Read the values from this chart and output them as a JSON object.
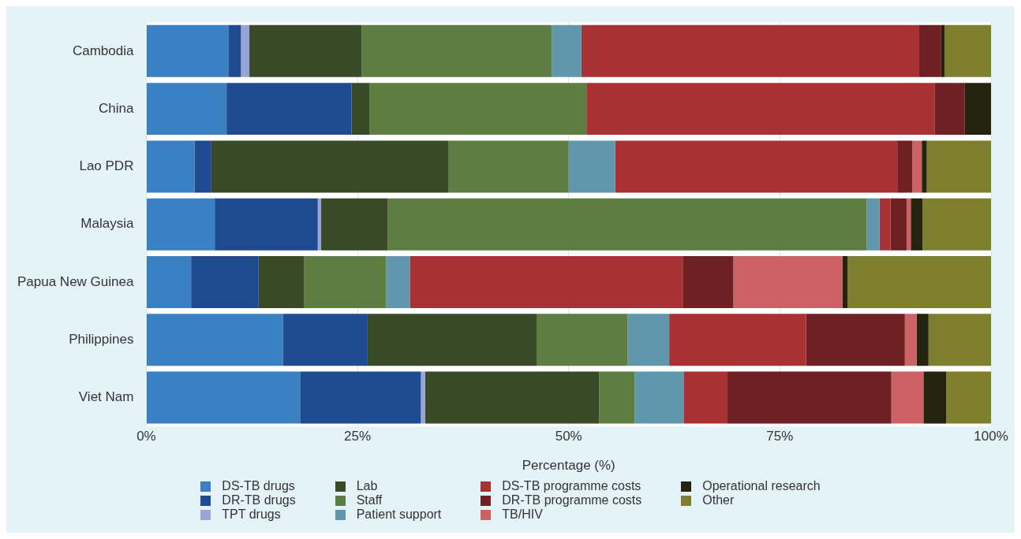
{
  "chart_data": {
    "type": "bar",
    "orientation": "horizontal",
    "stacked": true,
    "xlabel": "Percentage (%)",
    "categories": [
      "Cambodia",
      "China",
      "Lao PDR",
      "Malaysia",
      "Papua New Guinea",
      "Philippines",
      "Viet Nam"
    ],
    "xlim": [
      0,
      100
    ],
    "xticks": [
      {
        "value": 0,
        "label": "0%"
      },
      {
        "value": 25,
        "label": "25%"
      },
      {
        "value": 50,
        "label": "50%"
      },
      {
        "value": 75,
        "label": "75%"
      },
      {
        "value": 100,
        "label": "100%"
      }
    ],
    "grid": "x",
    "legend": "bottom",
    "series": [
      {
        "name": "DS-TB drugs",
        "color": "#3a80c2",
        "values": [
          9.7,
          9.5,
          5.7,
          8.1,
          5.3,
          16.2,
          18.2
        ]
      },
      {
        "name": "DR-TB drugs",
        "color": "#1f4a8f",
        "values": [
          1.5,
          14.8,
          2.0,
          12.2,
          8.0,
          10.0,
          14.3
        ]
      },
      {
        "name": "TPT drugs",
        "color": "#9aa3d6",
        "values": [
          1.0,
          0,
          0,
          0.4,
          0,
          0,
          0.5
        ]
      },
      {
        "name": "Lab",
        "color": "#384a26",
        "values": [
          13.3,
          2.1,
          28.1,
          7.9,
          5.4,
          20.0,
          20.6
        ]
      },
      {
        "name": "Staff",
        "color": "#5e7e41",
        "values": [
          22.5,
          25.7,
          14.2,
          56.7,
          9.7,
          10.8,
          4.2
        ]
      },
      {
        "name": "Patient support",
        "color": "#6197ad",
        "values": [
          3.5,
          0,
          5.5,
          1.5,
          2.8,
          4.9,
          5.8
        ]
      },
      {
        "name": "DS-TB programme costs",
        "color": "#a83233",
        "values": [
          40.0,
          41.2,
          33.4,
          1.3,
          32.3,
          16.2,
          5.2
        ]
      },
      {
        "name": "DR-TB programme costs",
        "color": "#6e2022",
        "values": [
          2.6,
          3.6,
          1.8,
          1.9,
          6.0,
          11.7,
          19.4
        ]
      },
      {
        "name": "TB/HIV",
        "color": "#cc6263",
        "values": [
          0,
          0,
          1.1,
          0.5,
          12.9,
          1.4,
          3.8
        ]
      },
      {
        "name": "Operational research",
        "color": "#23230f",
        "values": [
          0.4,
          3.1,
          0.6,
          1.4,
          0.6,
          1.4,
          2.7
        ]
      },
      {
        "name": "Other",
        "color": "#7e7f2e",
        "values": [
          5.5,
          0,
          7.6,
          8.1,
          17.0,
          7.4,
          5.3
        ]
      }
    ]
  }
}
